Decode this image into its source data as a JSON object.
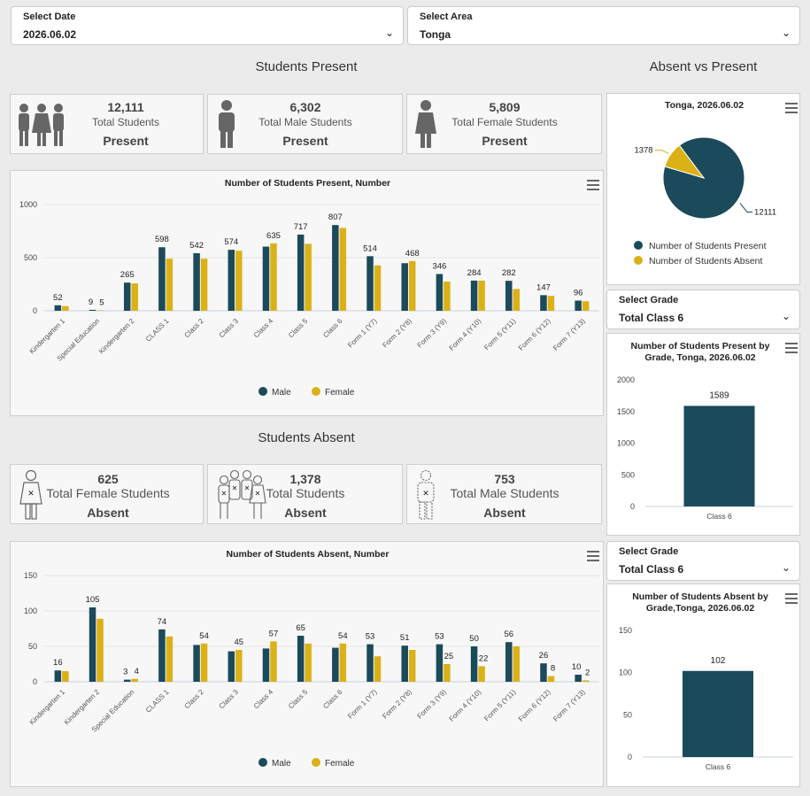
{
  "filters": {
    "date": {
      "label": "Select Date",
      "value": "2026.06.02"
    },
    "area": {
      "label": "Select Area",
      "value": "Tonga"
    }
  },
  "present_section": {
    "title": "Students Present",
    "kpis": [
      {
        "num": "12,111",
        "desc": "Total Students",
        "state": "Present"
      },
      {
        "num": "6,302",
        "desc": "Total Male Students",
        "state": "Present"
      },
      {
        "num": "5,809",
        "desc": "Total Female Students",
        "state": "Present"
      }
    ]
  },
  "absent_section": {
    "title": "Students Absent",
    "kpis": [
      {
        "num": "625",
        "desc": "Total Female Students",
        "state": "Absent"
      },
      {
        "num": "1,378",
        "desc": "Total Students",
        "state": "Absent"
      },
      {
        "num": "753",
        "desc": "Total Male Students",
        "state": "Absent"
      }
    ]
  },
  "right_title": "Absent vs Present",
  "grade_select_1": {
    "label": "Select Grade",
    "value": "Total Class 6"
  },
  "grade_select_2": {
    "label": "Select Grade",
    "value": "Total Class 6"
  },
  "colors": {
    "male": "#1b4a5a",
    "female": "#dbb117"
  },
  "chart_data": [
    {
      "id": "present",
      "type": "bar",
      "title": "Number of Students Present, Number",
      "ylim": [
        0,
        1000
      ],
      "yticks": [
        0,
        500,
        1000
      ],
      "categories": [
        "Kindergarten 1",
        "Special Education",
        "Kindergarten 2",
        "CLASS 1",
        "Class 2",
        "Class 3",
        "Class 4",
        "Class 5",
        "Class 6",
        "Form 1 (Y7)",
        "Form 2 (Y8)",
        "Form 3 (Y9)",
        "Form 4 (Y10)",
        "Form 5 (Y11)",
        "Form 6 (Y12)",
        "Form 7 (Y13)"
      ],
      "series": [
        {
          "name": "Male",
          "values": [
            52,
            9,
            265,
            598,
            542,
            574,
            604,
            717,
            807,
            514,
            448,
            346,
            284,
            282,
            147,
            96
          ]
        },
        {
          "name": "Female",
          "values": [
            44,
            5,
            258,
            490,
            490,
            565,
            635,
            630,
            780,
            427,
            468,
            275,
            284,
            205,
            140,
            90
          ]
        }
      ],
      "labels": [
        "52",
        "9",
        "5",
        "265",
        "598",
        "542",
        "574",
        "635",
        "717",
        "807",
        "514",
        "468",
        "346",
        "284",
        "282",
        "147",
        "96"
      ],
      "legend": [
        "Male",
        "Female"
      ]
    },
    {
      "id": "absent",
      "type": "bar",
      "title": "Number of Students Absent, Number",
      "ylim": [
        0,
        150
      ],
      "yticks": [
        0,
        50,
        100,
        150
      ],
      "categories": [
        "Kindergarten 1",
        "Kindergarten 2",
        "Special Education",
        "CLASS 1",
        "Class 2",
        "Class 3",
        "Class 4",
        "Class 5",
        "Class 6",
        "Form 1 (Y7)",
        "Form 2 (Y8)",
        "Form 3 (Y9)",
        "Form 4 (Y10)",
        "Form 5 (Y11)",
        "Form 6 (Y12)",
        "Form 7 (Y13)"
      ],
      "series": [
        {
          "name": "Male",
          "values": [
            16,
            105,
            3,
            74,
            52,
            43,
            47,
            65,
            48,
            53,
            51,
            53,
            50,
            56,
            26,
            10
          ]
        },
        {
          "name": "Female",
          "values": [
            15,
            89,
            4,
            64,
            54,
            45,
            57,
            54,
            54,
            36,
            45,
            25,
            22,
            50,
            8,
            2
          ]
        }
      ],
      "labels": [
        "16",
        "105",
        "3",
        "4",
        "74",
        "54",
        "45",
        "57",
        "65",
        "54",
        "53",
        "51",
        "53",
        "25",
        "50",
        "22",
        "56",
        "26",
        "8",
        "10",
        "2"
      ],
      "legend": [
        "Male",
        "Female"
      ]
    },
    {
      "id": "pie",
      "type": "pie",
      "title": "Tonga, 2026.06.02",
      "slices": [
        {
          "name": "Number of Students Present",
          "value": 12111,
          "color": "#1b4a5a"
        },
        {
          "name": "Number of Students Absent",
          "value": 1378,
          "color": "#dbb117"
        }
      ],
      "labels": [
        "12111",
        "1378"
      ]
    },
    {
      "id": "grade_present",
      "type": "bar",
      "title": "Number of Students Present by Grade, Tonga, 2026.06.02",
      "ylim": [
        0,
        2000
      ],
      "yticks": [
        0,
        500,
        1000,
        1500,
        2000
      ],
      "categories": [
        "Class 6"
      ],
      "values": [
        1589
      ],
      "labels": [
        "1589"
      ]
    },
    {
      "id": "grade_absent",
      "type": "bar",
      "title": "Number of Students Absent by Grade,Tonga, 2026.06.02",
      "ylim": [
        0,
        150
      ],
      "yticks": [
        0,
        50,
        100,
        150
      ],
      "categories": [
        "Class 6"
      ],
      "values": [
        102
      ],
      "labels": [
        "102"
      ]
    }
  ]
}
